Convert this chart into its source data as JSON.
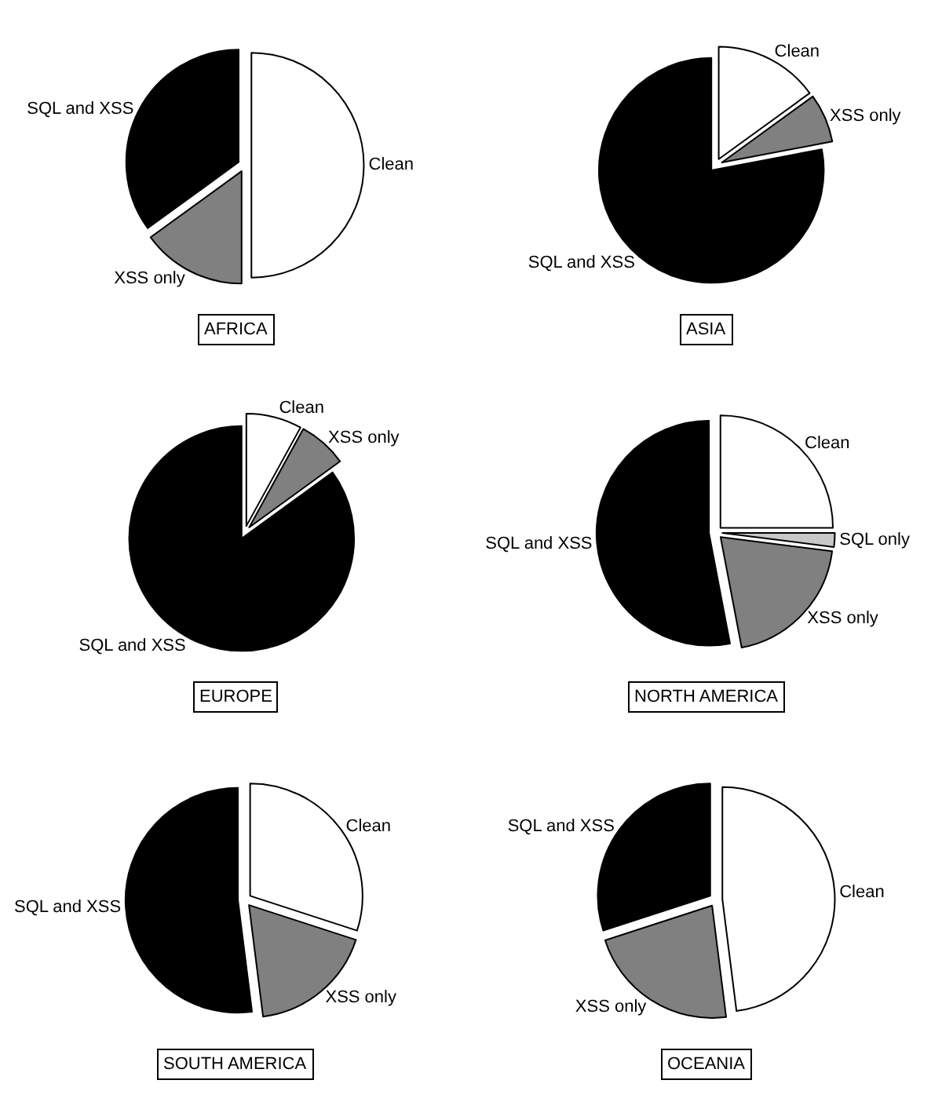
{
  "chart_data": [
    {
      "type": "pie",
      "title": "AFRICA",
      "categories": [
        "Clean",
        "XSS only",
        "SQL and XSS"
      ],
      "values": [
        50,
        15,
        35
      ],
      "colors": [
        "#ffffff",
        "#808080",
        "#000000"
      ]
    },
    {
      "type": "pie",
      "title": "ASIA",
      "categories": [
        "Clean",
        "XSS only",
        "SQL and XSS"
      ],
      "values": [
        15,
        7,
        78
      ],
      "colors": [
        "#ffffff",
        "#808080",
        "#000000"
      ]
    },
    {
      "type": "pie",
      "title": "EUROPE",
      "categories": [
        "Clean",
        "XSS only",
        "SQL and XSS"
      ],
      "values": [
        8,
        7,
        85
      ],
      "colors": [
        "#ffffff",
        "#808080",
        "#000000"
      ]
    },
    {
      "type": "pie",
      "title": "NORTH AMERICA",
      "categories": [
        "Clean",
        "SQL only",
        "XSS only",
        "SQL and XSS"
      ],
      "values": [
        25,
        2,
        20,
        53
      ],
      "colors": [
        "#ffffff",
        "#c8c8c8",
        "#808080",
        "#000000"
      ]
    },
    {
      "type": "pie",
      "title": "SOUTH AMERICA",
      "categories": [
        "Clean",
        "XSS only",
        "SQL and XSS"
      ],
      "values": [
        30,
        18,
        52
      ],
      "colors": [
        "#ffffff",
        "#808080",
        "#000000"
      ]
    },
    {
      "type": "pie",
      "title": "OCEANIA",
      "categories": [
        "Clean",
        "XSS only",
        "SQL and XSS"
      ],
      "values": [
        48,
        22,
        30
      ],
      "colors": [
        "#ffffff",
        "#808080",
        "#000000"
      ]
    }
  ]
}
